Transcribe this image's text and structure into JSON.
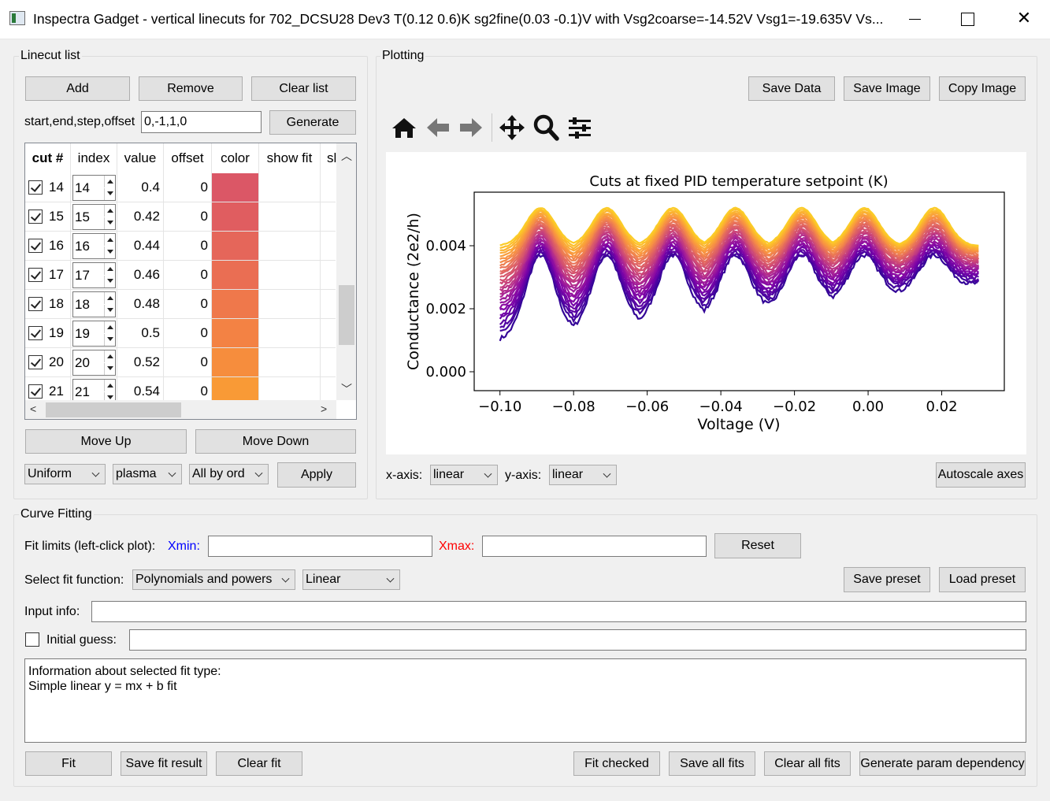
{
  "window": {
    "title": "Inspectra Gadget - vertical linecuts for 702_DCSU28 Dev3 T(0.12 0.6)K sg2fine(0.03 -0.1)V with Vsg2coarse=-14.52V Vsg1=-19.635V Vs..."
  },
  "linecut_list": {
    "group_title": "Linecut list",
    "add_label": "Add",
    "remove_label": "Remove",
    "clear_label": "Clear list",
    "range_label": "start,end,step,offset",
    "range_value": "0,-1,1,0",
    "generate_label": "Generate",
    "columns": [
      "cut #",
      "index",
      "value",
      "offset",
      "color",
      "show fit",
      "sl"
    ],
    "rows": [
      {
        "cut": "14",
        "index": "14",
        "value": "0.4",
        "offset": "0",
        "color": "#db5766"
      },
      {
        "cut": "15",
        "index": "15",
        "value": "0.42",
        "offset": "0",
        "color": "#e05d60"
      },
      {
        "cut": "16",
        "index": "16",
        "value": "0.44",
        "offset": "0",
        "color": "#e5665a"
      },
      {
        "cut": "17",
        "index": "17",
        "value": "0.46",
        "offset": "0",
        "color": "#ea6e53"
      },
      {
        "cut": "18",
        "index": "18",
        "value": "0.48",
        "offset": "0",
        "color": "#ef784b"
      },
      {
        "cut": "19",
        "index": "19",
        "value": "0.5",
        "offset": "0",
        "color": "#f38244"
      },
      {
        "cut": "20",
        "index": "20",
        "value": "0.52",
        "offset": "0",
        "color": "#f68d3d"
      },
      {
        "cut": "21",
        "index": "21",
        "value": "0.54",
        "offset": "0",
        "color": "#f99a36"
      }
    ],
    "move_up_label": "Move Up",
    "move_down_label": "Move Down",
    "color_mode": "Uniform",
    "colormap": "plasma",
    "order_mode": "All by ord",
    "apply_label": "Apply"
  },
  "plotting": {
    "group_title": "Plotting",
    "save_data_label": "Save Data",
    "save_image_label": "Save Image",
    "copy_image_label": "Copy Image",
    "xaxis_label": "x-axis:",
    "xaxis_value": "linear",
    "yaxis_label": "y-axis:",
    "yaxis_value": "linear",
    "autoscale_label": "Autoscale axes",
    "toolbar_icons": [
      "home-icon",
      "back-arrow-icon",
      "forward-arrow-icon",
      "pan-icon",
      "zoom-icon",
      "configure-icon"
    ]
  },
  "chart_data": {
    "type": "line",
    "title": "Cuts at fixed PID temperature setpoint (K)",
    "xlabel": "Voltage (V)",
    "ylabel": "Conductance (2e2/h)",
    "xlim": [
      -0.107,
      0.037
    ],
    "ylim": [
      -0.0006,
      0.0057
    ],
    "xticks": [
      "−0.10",
      "−0.08",
      "−0.06",
      "−0.04",
      "−0.02",
      "0.00",
      "0.02"
    ],
    "xtick_values": [
      -0.1,
      -0.08,
      -0.06,
      -0.04,
      -0.02,
      0.0,
      0.02
    ],
    "yticks": [
      "0.000",
      "0.002",
      "0.004"
    ],
    "ytick_values": [
      0.0,
      0.002,
      0.004
    ],
    "x_range": [
      -0.1,
      0.03
    ],
    "peak_positions": [
      -0.089,
      -0.071,
      -0.053,
      -0.036,
      -0.018,
      -0.001,
      0.018
    ],
    "series_count": 28,
    "baseline_low_start": 0.001,
    "baseline_low_end": 0.0028,
    "peak_low": 0.0037,
    "peak_high": 0.0052,
    "valley_high": 0.004,
    "colormap": "plasma",
    "grid": false
  },
  "curve_fitting": {
    "group_title": "Curve Fitting",
    "fit_limits_label": "Fit limits (left-click plot):",
    "xmin_label": "Xmin:",
    "xmax_label": "Xmax:",
    "xmin_value": "",
    "xmax_value": "",
    "reset_label": "Reset",
    "select_label": "Select fit function:",
    "function_class": "Polynomials and powers",
    "function_type": "Linear",
    "save_preset_label": "Save preset",
    "load_preset_label": "Load preset",
    "input_info_label": "Input info:",
    "input_info_value": "",
    "initial_guess_label": "Initial guess:",
    "initial_guess_value": "",
    "info_line1": "Information about selected fit type:",
    "info_line2": "Simple linear y = mx + b fit",
    "fit_label": "Fit",
    "save_fit_label": "Save fit result",
    "clear_fit_label": "Clear fit",
    "fit_checked_label": "Fit checked",
    "save_all_fits_label": "Save all fits",
    "clear_all_fits_label": "Clear all fits",
    "generate_param_label": "Generate param dependency",
    "xmin_color": "#0000ff",
    "xmax_color": "#ff0000"
  }
}
